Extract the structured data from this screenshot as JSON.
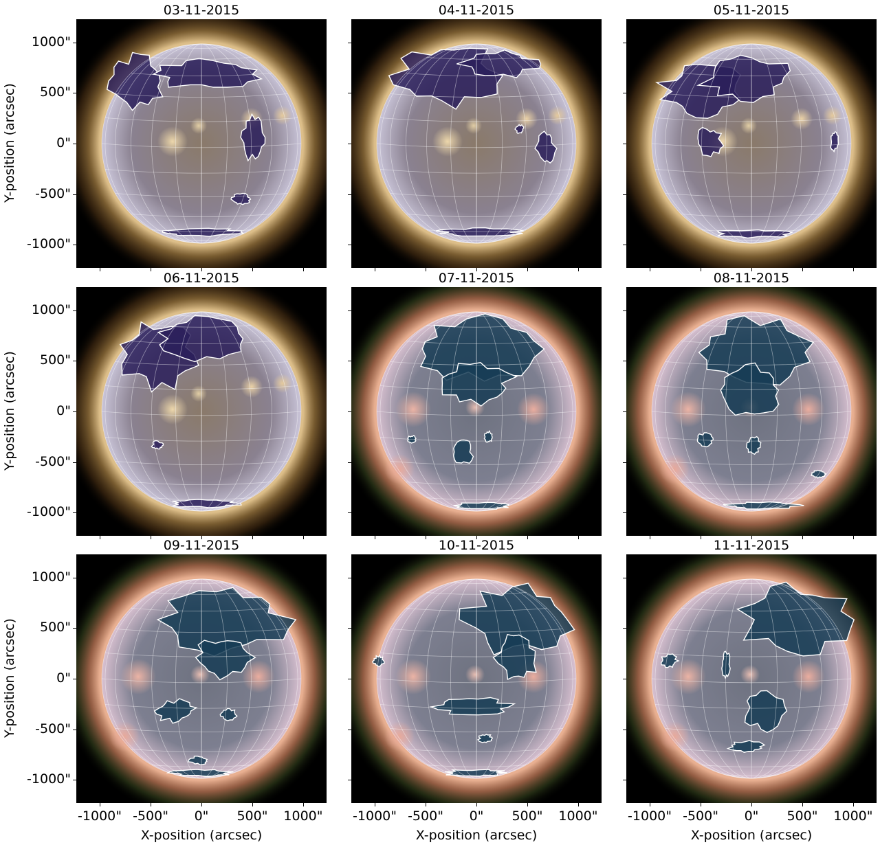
{
  "figure": {
    "panels": [
      {
        "title": "03-11-2015",
        "style": "violet"
      },
      {
        "title": "04-11-2015",
        "style": "violet"
      },
      {
        "title": "05-11-2015",
        "style": "violet"
      },
      {
        "title": "06-11-2015",
        "style": "violet"
      },
      {
        "title": "07-11-2015",
        "style": "teal"
      },
      {
        "title": "08-11-2015",
        "style": "teal"
      },
      {
        "title": "09-11-2015",
        "style": "teal"
      },
      {
        "title": "10-11-2015",
        "style": "teal"
      },
      {
        "title": "11-11-2015",
        "style": "teal"
      }
    ],
    "y_axis": {
      "label": "Y-position (arcsec)",
      "ticks": [
        "1000\"",
        "500\"",
        "0\"",
        "-500\"",
        "-1000\""
      ]
    },
    "x_axis": {
      "label": "X-position (arcsec)",
      "ticks": [
        "-1000\"",
        "-500\"",
        "0\"",
        "500\"",
        "1000\""
      ]
    },
    "colors": {
      "contour": "#ffffff",
      "grid": "#ffffff",
      "coronal_hole_violet": "#2a1f5a",
      "coronal_hole_teal": "#163c55"
    }
  }
}
